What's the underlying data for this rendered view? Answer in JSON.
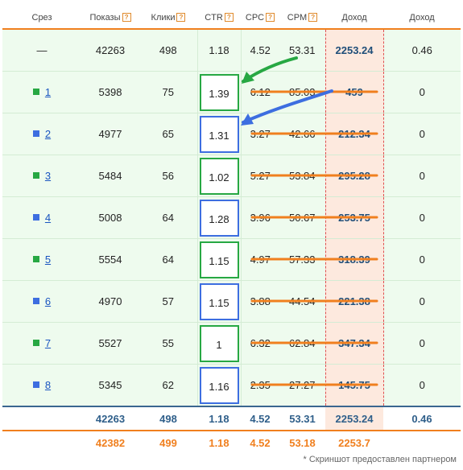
{
  "header": {
    "slice": "Срез",
    "impressions": "Показы",
    "clicks": "Клики",
    "ctr": "CTR",
    "cpc": "CPC",
    "cpm": "CPM",
    "income": "Доход",
    "income2": "Доход",
    "help_glyph": "?"
  },
  "rows": [
    {
      "slice": "—",
      "impressions": "42263",
      "clicks": "498",
      "ctr": "1.18",
      "cpc": "4.52",
      "cpm": "53.31",
      "income": "2253.24",
      "income2": "0.46"
    },
    {
      "slice": "1",
      "impressions": "5398",
      "clicks": "75",
      "ctr": "1.39",
      "cpc": "6.12",
      "cpm": "85.03",
      "income": "459",
      "income2": "0"
    },
    {
      "slice": "2",
      "impressions": "4977",
      "clicks": "65",
      "ctr": "1.31",
      "cpc": "3.27",
      "cpm": "42.66",
      "income": "212.34",
      "income2": "0"
    },
    {
      "slice": "3",
      "impressions": "5484",
      "clicks": "56",
      "ctr": "1.02",
      "cpc": "5.27",
      "cpm": "53.84",
      "income": "295.28",
      "income2": "0"
    },
    {
      "slice": "4",
      "impressions": "5008",
      "clicks": "64",
      "ctr": "1.28",
      "cpc": "3.96",
      "cpm": "50.67",
      "income": "253.75",
      "income2": "0"
    },
    {
      "slice": "5",
      "impressions": "5554",
      "clicks": "64",
      "ctr": "1.15",
      "cpc": "4.97",
      "cpm": "57.33",
      "income": "318.39",
      "income2": "0"
    },
    {
      "slice": "6",
      "impressions": "4970",
      "clicks": "57",
      "ctr": "1.15",
      "cpc": "3.88",
      "cpm": "44.54",
      "income": "221.38",
      "income2": "0"
    },
    {
      "slice": "7",
      "impressions": "5527",
      "clicks": "55",
      "ctr": "1",
      "cpc": "6.32",
      "cpm": "62.84",
      "income": "347.34",
      "income2": "0"
    },
    {
      "slice": "8",
      "impressions": "5345",
      "clicks": "62",
      "ctr": "1.16",
      "cpc": "2.35",
      "cpm": "27.27",
      "income": "145.75",
      "income2": "0"
    }
  ],
  "totals": {
    "impressions": "42263",
    "clicks": "498",
    "ctr": "1.18",
    "cpc": "4.52",
    "cpm": "53.31",
    "income": "2253.24",
    "income2": "0.46"
  },
  "totals2": {
    "impressions": "42382",
    "clicks": "499",
    "ctr": "1.18",
    "cpc": "4.52",
    "cpm": "53.18",
    "income": "2253.7"
  },
  "footnote": "* Скриншот предоставлен партнером",
  "colors": {
    "green": "#27a843",
    "blue": "#3d6ee0",
    "orange": "#f07f1e",
    "row_bg": "#eefbee",
    "income_bg": "#fde9de",
    "link": "#1a55c0"
  }
}
